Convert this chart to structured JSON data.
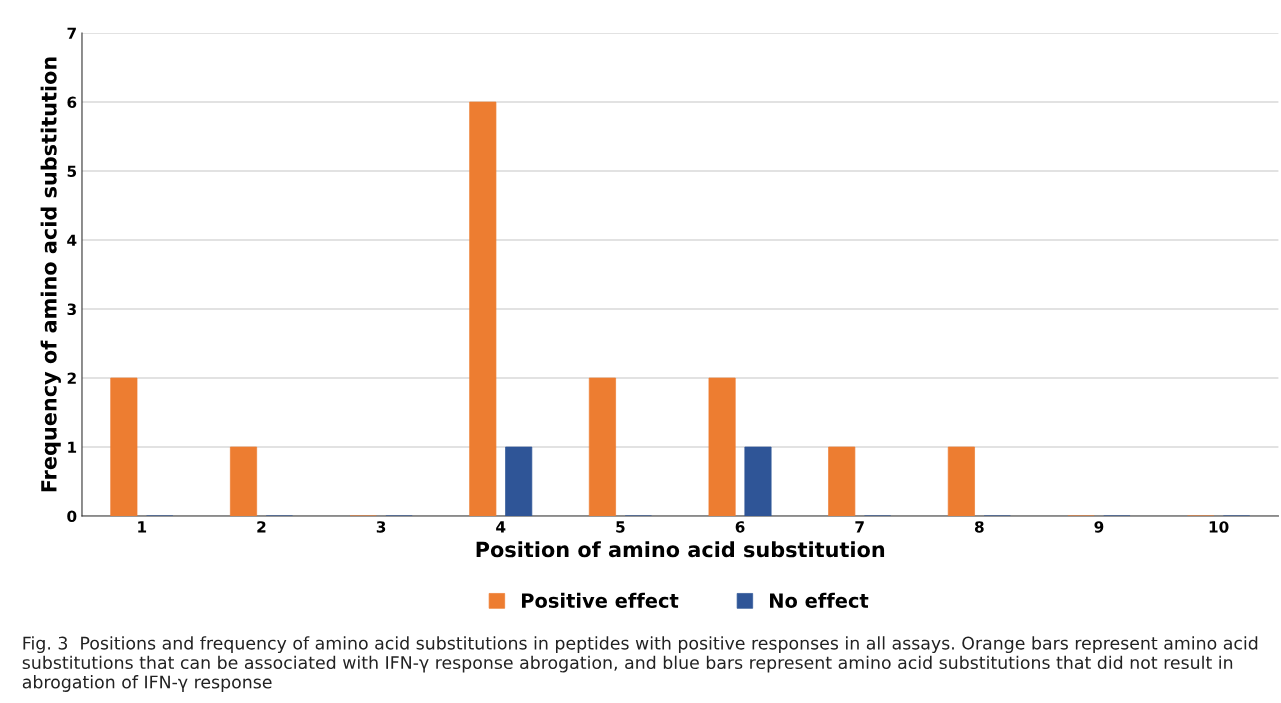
{
  "chart_data": {
    "type": "bar",
    "xlabel": "Position of amino acid substitution",
    "ylabel": "Frequency of amino acid substitution",
    "categories": [
      "1",
      "2",
      "3",
      "4",
      "5",
      "6",
      "7",
      "8",
      "9",
      "10"
    ],
    "series": [
      {
        "name": "Positive effect",
        "color": "#ed7d31",
        "values": [
          2,
          1,
          0,
          6,
          2,
          2,
          1,
          1,
          0,
          0
        ]
      },
      {
        "name": "No effect",
        "color": "#2f5597",
        "values": [
          0,
          0,
          0,
          1,
          0,
          1,
          0,
          0,
          0,
          0
        ]
      }
    ],
    "ylim": [
      0,
      7
    ],
    "yticks": [
      0,
      1,
      2,
      3,
      4,
      5,
      6,
      7
    ],
    "grid": "y",
    "legend": "bottom",
    "annotations": [
      "Fig. 3  Positions and frequency of amino acid substitutions in peptides with positive responses in all assays. Orange bars represent amino acid substitutions that can be associated with IFN-γ response abrogation, and blue bars represent amino acid substitutions that did not result in abrogation of IFN-γ response"
    ]
  }
}
